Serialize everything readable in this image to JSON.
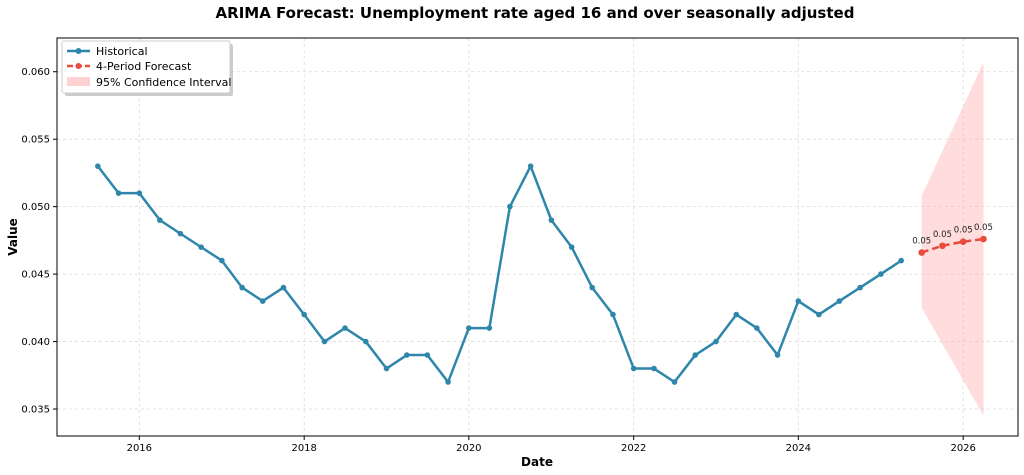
{
  "chart_data": {
    "type": "line",
    "title": "ARIMA Forecast: Unemployment rate aged 16 and over seasonally adjusted",
    "xlabel": "Date",
    "ylabel": "Value",
    "xlim": [
      "2015-01-01",
      "2026-09-01"
    ],
    "ylim": [
      0.033,
      0.0625
    ],
    "x_ticks": [
      "2016",
      "2018",
      "2020",
      "2022",
      "2024",
      "2026"
    ],
    "y_ticks": [
      "0.035",
      "0.040",
      "0.045",
      "0.050",
      "0.055",
      "0.060"
    ],
    "grid": true,
    "legend_position": "top-left",
    "series": [
      {
        "name": "Historical",
        "color": "#2e86ab",
        "x": [
          "2015-07-01",
          "2015-10-01",
          "2016-01-01",
          "2016-04-01",
          "2016-07-01",
          "2016-10-01",
          "2017-01-01",
          "2017-04-01",
          "2017-07-01",
          "2017-10-01",
          "2018-01-01",
          "2018-04-01",
          "2018-07-01",
          "2018-10-01",
          "2019-01-01",
          "2019-04-01",
          "2019-07-01",
          "2019-10-01",
          "2020-01-01",
          "2020-04-01",
          "2020-07-01",
          "2020-10-01",
          "2021-01-01",
          "2021-04-01",
          "2021-07-01",
          "2021-10-01",
          "2022-01-01",
          "2022-04-01",
          "2022-07-01",
          "2022-10-01",
          "2023-01-01",
          "2023-04-01",
          "2023-07-01",
          "2023-10-01",
          "2024-01-01",
          "2024-04-01",
          "2024-07-01",
          "2024-10-01",
          "2025-01-01",
          "2025-04-01"
        ],
        "y": [
          0.053,
          0.051,
          0.051,
          0.049,
          0.048,
          0.047,
          0.046,
          0.044,
          0.043,
          0.044,
          0.042,
          0.04,
          0.041,
          0.04,
          0.038,
          0.039,
          0.039,
          0.037,
          0.041,
          0.041,
          0.05,
          0.053,
          0.049,
          0.047,
          0.044,
          0.042,
          0.038,
          0.038,
          0.037,
          0.039,
          0.04,
          0.042,
          0.041,
          0.039,
          0.043,
          0.042,
          0.043,
          0.044,
          0.045,
          0.046
        ]
      },
      {
        "name": "4-Period Forecast",
        "color": "#e74c3c",
        "x": [
          "2025-07-01",
          "2025-10-01",
          "2026-01-01",
          "2026-04-01"
        ],
        "y": [
          0.0466,
          0.0471,
          0.0474,
          0.0476
        ],
        "labels": [
          "0.05",
          "0.05",
          "0.05",
          "0.05"
        ]
      }
    ],
    "confidence_interval": {
      "name": "95% Confidence Interval",
      "color": "#ffb3b3",
      "x": [
        "2025-07-01",
        "2026-04-01"
      ],
      "lower": [
        0.0425,
        0.0345
      ],
      "upper": [
        0.0508,
        0.0607
      ]
    }
  }
}
